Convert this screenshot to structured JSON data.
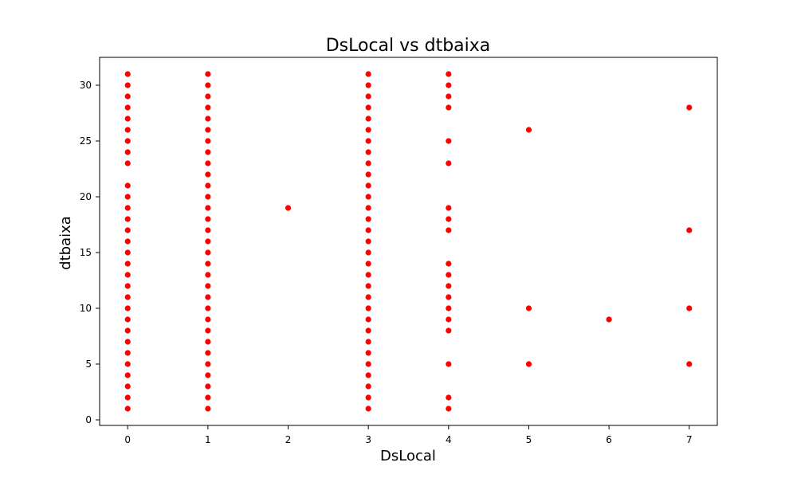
{
  "chart_data": {
    "type": "scatter",
    "title": "DsLocal vs dtbaixa",
    "xlabel": "DsLocal",
    "ylabel": "dtbaixa",
    "xlim": [
      -0.35,
      7.35
    ],
    "ylim": [
      -0.5,
      32.5
    ],
    "xticks": [
      0,
      1,
      2,
      3,
      4,
      5,
      6,
      7
    ],
    "yticks": [
      0,
      5,
      10,
      15,
      20,
      25,
      30
    ],
    "marker_color": "#ff0000",
    "grid": false,
    "legend": "none",
    "series": [
      {
        "points": [
          {
            "x": 0,
            "y": 1
          },
          {
            "x": 0,
            "y": 2
          },
          {
            "x": 0,
            "y": 3
          },
          {
            "x": 0,
            "y": 4
          },
          {
            "x": 0,
            "y": 5
          },
          {
            "x": 0,
            "y": 6
          },
          {
            "x": 0,
            "y": 7
          },
          {
            "x": 0,
            "y": 8
          },
          {
            "x": 0,
            "y": 9
          },
          {
            "x": 0,
            "y": 10
          },
          {
            "x": 0,
            "y": 11
          },
          {
            "x": 0,
            "y": 12
          },
          {
            "x": 0,
            "y": 13
          },
          {
            "x": 0,
            "y": 14
          },
          {
            "x": 0,
            "y": 15
          },
          {
            "x": 0,
            "y": 16
          },
          {
            "x": 0,
            "y": 17
          },
          {
            "x": 0,
            "y": 18
          },
          {
            "x": 0,
            "y": 19
          },
          {
            "x": 0,
            "y": 20
          },
          {
            "x": 0,
            "y": 21
          },
          {
            "x": 0,
            "y": 23
          },
          {
            "x": 0,
            "y": 24
          },
          {
            "x": 0,
            "y": 25
          },
          {
            "x": 0,
            "y": 26
          },
          {
            "x": 0,
            "y": 27
          },
          {
            "x": 0,
            "y": 28
          },
          {
            "x": 0,
            "y": 29
          },
          {
            "x": 0,
            "y": 30
          },
          {
            "x": 0,
            "y": 31
          },
          {
            "x": 1,
            "y": 1
          },
          {
            "x": 1,
            "y": 2
          },
          {
            "x": 1,
            "y": 3
          },
          {
            "x": 1,
            "y": 4
          },
          {
            "x": 1,
            "y": 5
          },
          {
            "x": 1,
            "y": 6
          },
          {
            "x": 1,
            "y": 7
          },
          {
            "x": 1,
            "y": 8
          },
          {
            "x": 1,
            "y": 9
          },
          {
            "x": 1,
            "y": 10
          },
          {
            "x": 1,
            "y": 11
          },
          {
            "x": 1,
            "y": 12
          },
          {
            "x": 1,
            "y": 13
          },
          {
            "x": 1,
            "y": 14
          },
          {
            "x": 1,
            "y": 15
          },
          {
            "x": 1,
            "y": 16
          },
          {
            "x": 1,
            "y": 17
          },
          {
            "x": 1,
            "y": 18
          },
          {
            "x": 1,
            "y": 19
          },
          {
            "x": 1,
            "y": 20
          },
          {
            "x": 1,
            "y": 21
          },
          {
            "x": 1,
            "y": 22
          },
          {
            "x": 1,
            "y": 23
          },
          {
            "x": 1,
            "y": 24
          },
          {
            "x": 1,
            "y": 25
          },
          {
            "x": 1,
            "y": 26
          },
          {
            "x": 1,
            "y": 27
          },
          {
            "x": 1,
            "y": 28
          },
          {
            "x": 1,
            "y": 29
          },
          {
            "x": 1,
            "y": 30
          },
          {
            "x": 1,
            "y": 31
          },
          {
            "x": 2,
            "y": 19
          },
          {
            "x": 3,
            "y": 1
          },
          {
            "x": 3,
            "y": 2
          },
          {
            "x": 3,
            "y": 3
          },
          {
            "x": 3,
            "y": 4
          },
          {
            "x": 3,
            "y": 5
          },
          {
            "x": 3,
            "y": 6
          },
          {
            "x": 3,
            "y": 7
          },
          {
            "x": 3,
            "y": 8
          },
          {
            "x": 3,
            "y": 9
          },
          {
            "x": 3,
            "y": 10
          },
          {
            "x": 3,
            "y": 11
          },
          {
            "x": 3,
            "y": 12
          },
          {
            "x": 3,
            "y": 13
          },
          {
            "x": 3,
            "y": 14
          },
          {
            "x": 3,
            "y": 15
          },
          {
            "x": 3,
            "y": 16
          },
          {
            "x": 3,
            "y": 17
          },
          {
            "x": 3,
            "y": 18
          },
          {
            "x": 3,
            "y": 19
          },
          {
            "x": 3,
            "y": 20
          },
          {
            "x": 3,
            "y": 21
          },
          {
            "x": 3,
            "y": 22
          },
          {
            "x": 3,
            "y": 23
          },
          {
            "x": 3,
            "y": 24
          },
          {
            "x": 3,
            "y": 25
          },
          {
            "x": 3,
            "y": 26
          },
          {
            "x": 3,
            "y": 27
          },
          {
            "x": 3,
            "y": 28
          },
          {
            "x": 3,
            "y": 29
          },
          {
            "x": 3,
            "y": 30
          },
          {
            "x": 3,
            "y": 31
          },
          {
            "x": 4,
            "y": 1
          },
          {
            "x": 4,
            "y": 2
          },
          {
            "x": 4,
            "y": 5
          },
          {
            "x": 4,
            "y": 8
          },
          {
            "x": 4,
            "y": 9
          },
          {
            "x": 4,
            "y": 10
          },
          {
            "x": 4,
            "y": 11
          },
          {
            "x": 4,
            "y": 12
          },
          {
            "x": 4,
            "y": 13
          },
          {
            "x": 4,
            "y": 14
          },
          {
            "x": 4,
            "y": 17
          },
          {
            "x": 4,
            "y": 18
          },
          {
            "x": 4,
            "y": 19
          },
          {
            "x": 4,
            "y": 23
          },
          {
            "x": 4,
            "y": 25
          },
          {
            "x": 4,
            "y": 28
          },
          {
            "x": 4,
            "y": 29
          },
          {
            "x": 4,
            "y": 30
          },
          {
            "x": 4,
            "y": 31
          },
          {
            "x": 5,
            "y": 5
          },
          {
            "x": 5,
            "y": 10
          },
          {
            "x": 5,
            "y": 26
          },
          {
            "x": 6,
            "y": 9
          },
          {
            "x": 7,
            "y": 5
          },
          {
            "x": 7,
            "y": 10
          },
          {
            "x": 7,
            "y": 17
          },
          {
            "x": 7,
            "y": 28
          }
        ]
      }
    ]
  }
}
